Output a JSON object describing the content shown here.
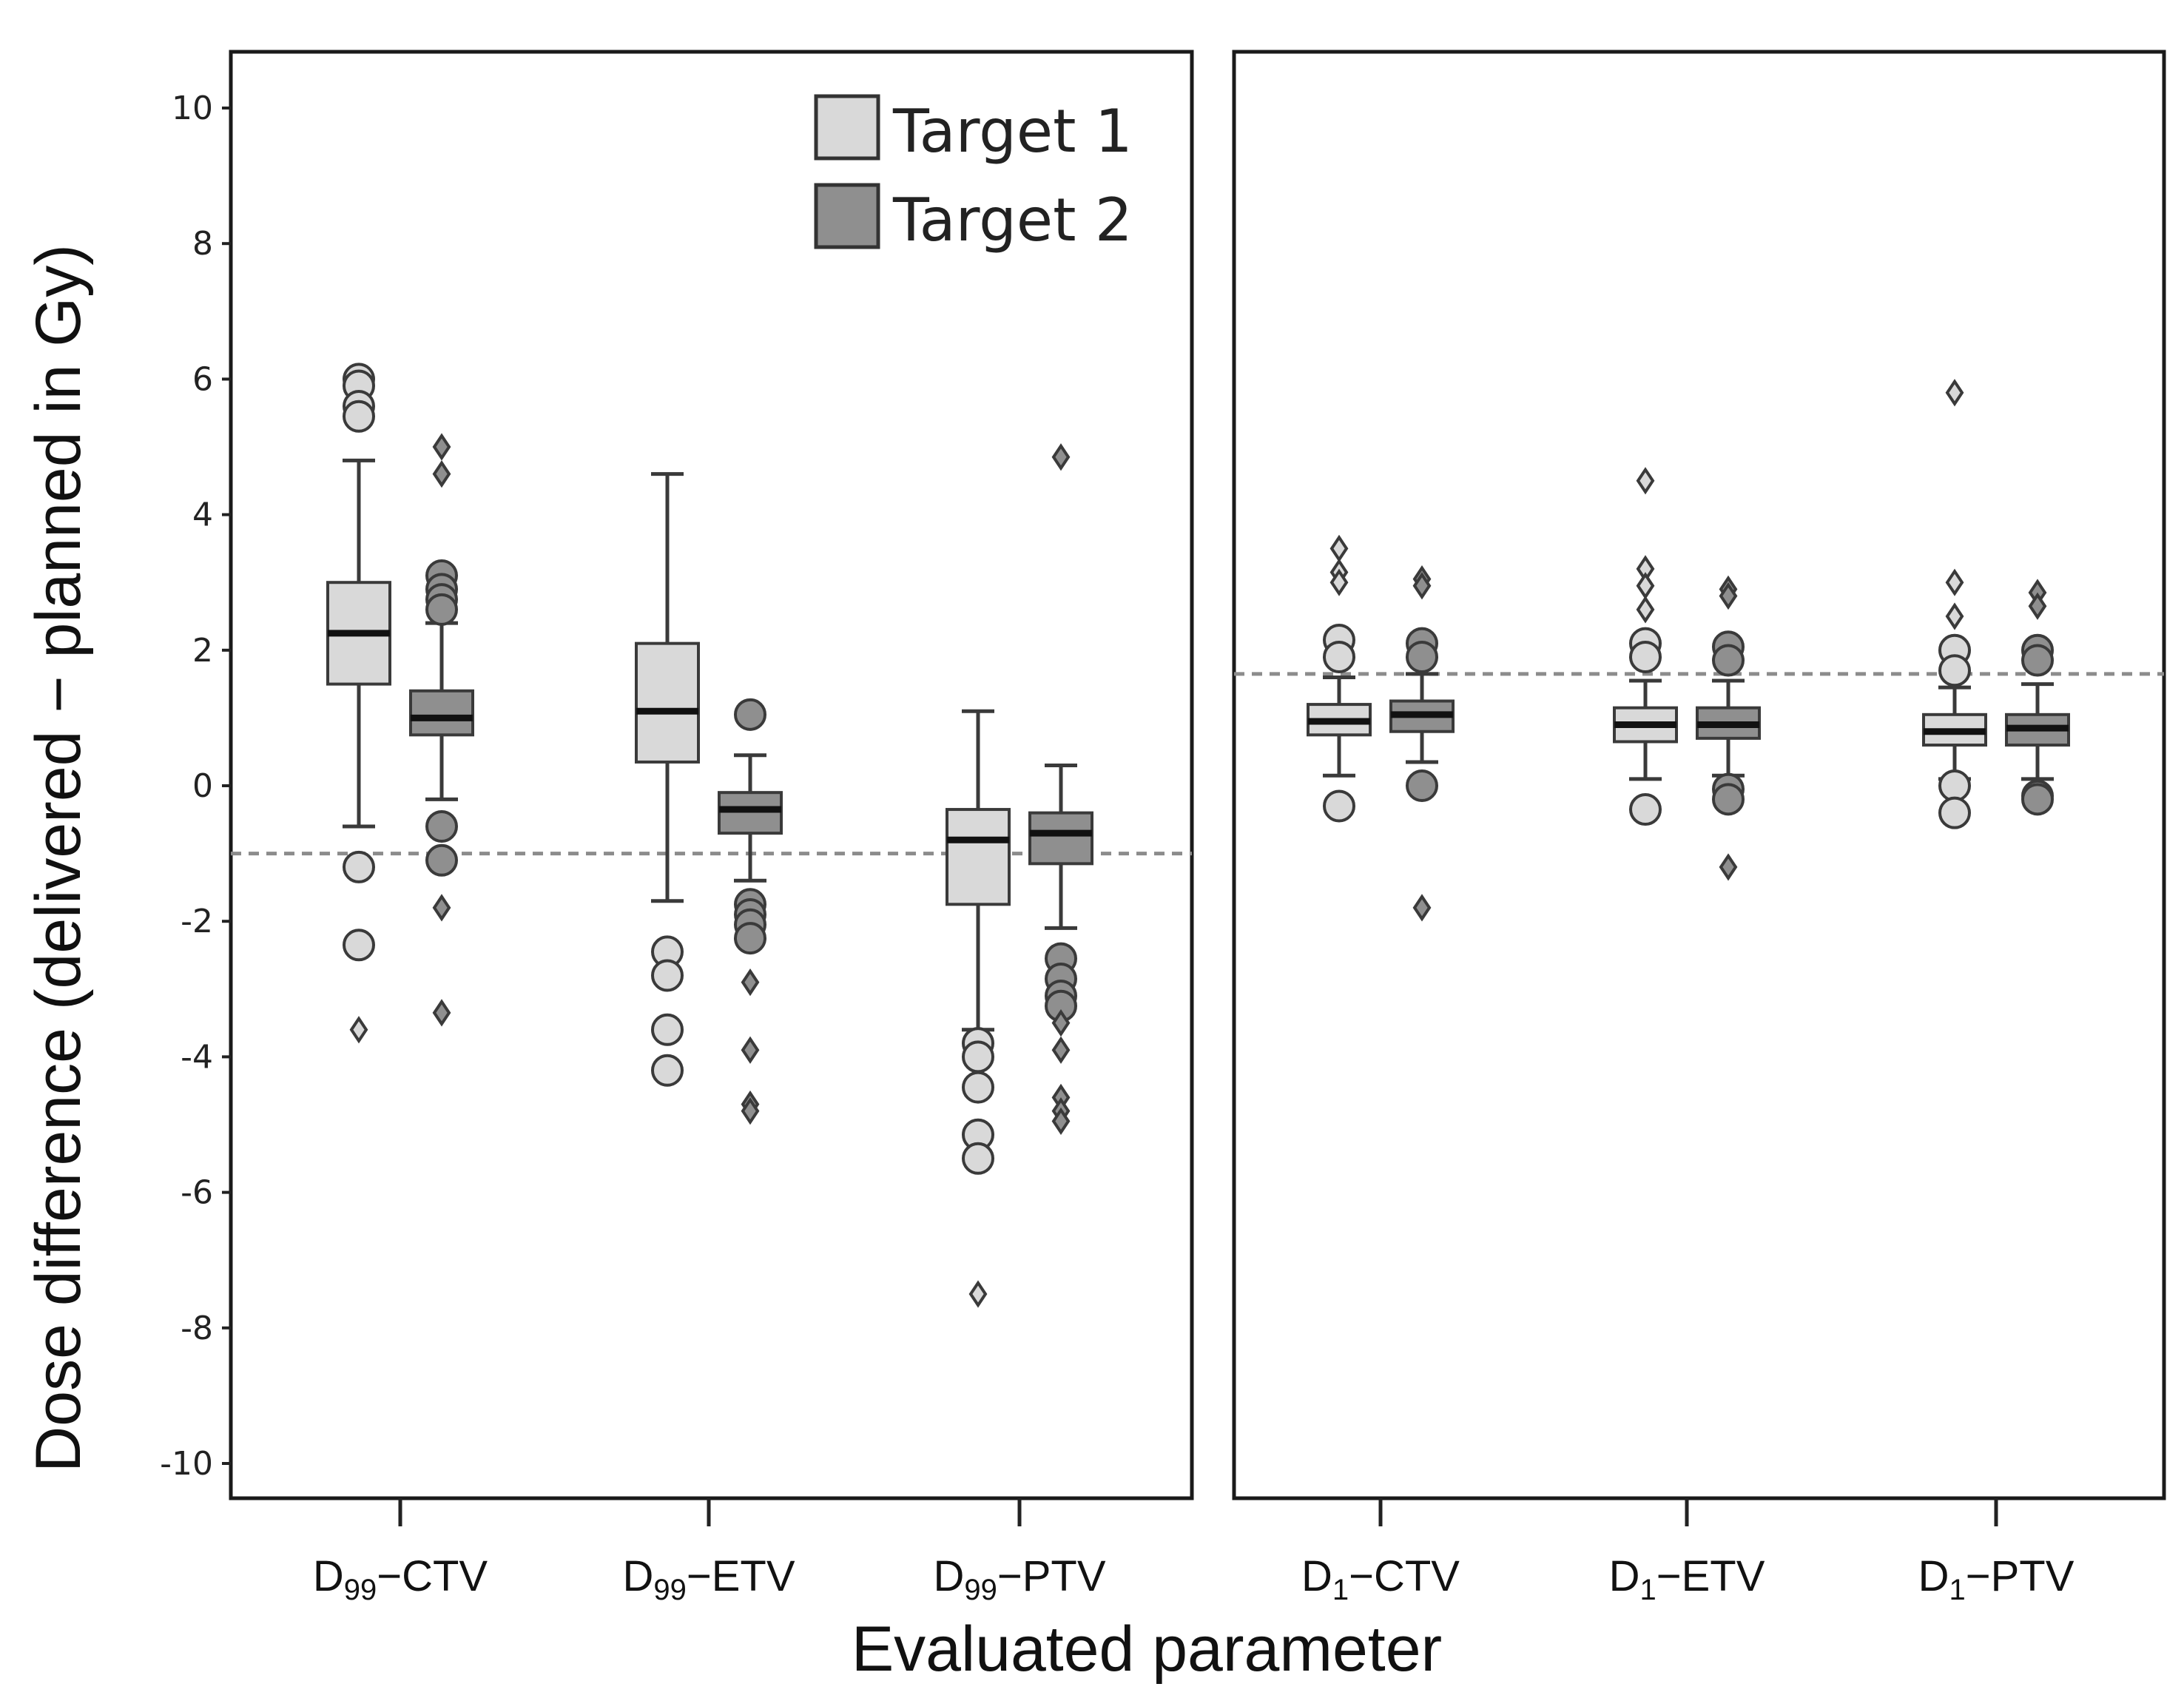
{
  "chart_data": {
    "type": "box",
    "ylabel": "Dose difference (delivered − planned in Gy)",
    "xlabel": "Evaluated parameter",
    "ylim": [
      -10.5,
      10.8
    ],
    "yticks": [
      10,
      8,
      6,
      4,
      2,
      0,
      -2,
      -4,
      -6,
      -8,
      -10
    ],
    "legend": {
      "position": "top-right of left panel",
      "entries": [
        {
          "label": "Target 1",
          "color": "#d9d9d9"
        },
        {
          "label": "Target 2",
          "color": "#8f8f8f"
        }
      ]
    },
    "colors": {
      "target1": "#d9d9d9",
      "target2": "#8f8f8f",
      "stroke": "#3a3a3a",
      "reference": "#8c8c8c"
    },
    "panels": [
      {
        "name": "D99",
        "reference_line": -1.0,
        "categories": [
          {
            "main": "D",
            "sub": "99",
            "suffix": "−CTV",
            "boxes": [
              {
                "series": "Target 1",
                "q1": 1.5,
                "median": 2.25,
                "q3": 3.0,
                "whisker_low": -0.6,
                "whisker_high": 4.8,
                "outliers": [
                  6.0,
                  5.9,
                  5.6,
                  5.45,
                  -1.2,
                  -2.35
                ],
                "extremes": [
                  -3.6
                ]
              },
              {
                "series": "Target 2",
                "q1": 0.75,
                "median": 1.0,
                "q3": 1.4,
                "whisker_low": -0.2,
                "whisker_high": 2.4,
                "outliers": [
                  3.1,
                  2.9,
                  2.75,
                  2.6,
                  -0.6,
                  -1.1
                ],
                "extremes": [
                  5.0,
                  4.6,
                  -1.8,
                  -3.35
                ]
              }
            ]
          },
          {
            "main": "D",
            "sub": "99",
            "suffix": "−ETV",
            "boxes": [
              {
                "series": "Target 1",
                "q1": 0.35,
                "median": 1.1,
                "q3": 2.1,
                "whisker_low": -1.7,
                "whisker_high": 4.6,
                "outliers": [
                  -2.45,
                  -2.8,
                  -3.6,
                  -4.2
                ],
                "extremes": []
              },
              {
                "series": "Target 2",
                "q1": -0.7,
                "median": -0.35,
                "q3": -0.1,
                "whisker_low": -1.4,
                "whisker_high": 0.45,
                "outliers": [
                  1.05,
                  -1.75,
                  -1.9,
                  -2.05,
                  -2.25
                ],
                "extremes": [
                  -2.9,
                  -3.9,
                  -4.7,
                  -4.8
                ]
              }
            ]
          },
          {
            "main": "D",
            "sub": "99",
            "suffix": "−PTV",
            "boxes": [
              {
                "series": "Target 1",
                "q1": -1.75,
                "median": -0.8,
                "q3": -0.35,
                "whisker_low": -3.6,
                "whisker_high": 1.1,
                "outliers": [
                  -3.8,
                  -4.0,
                  -4.45,
                  -5.15,
                  -5.5
                ],
                "extremes": [
                  -7.5
                ]
              },
              {
                "series": "Target 2",
                "q1": -1.15,
                "median": -0.7,
                "q3": -0.4,
                "whisker_low": -2.1,
                "whisker_high": 0.3,
                "outliers": [
                  -2.55,
                  -2.85,
                  -3.1,
                  -3.25
                ],
                "extremes": [
                  4.85,
                  -3.5,
                  -3.9,
                  -4.6,
                  -4.8,
                  -4.95
                ]
              }
            ]
          }
        ]
      },
      {
        "name": "D1",
        "reference_line": 1.65,
        "categories": [
          {
            "main": "D",
            "sub": "1",
            "suffix": "−CTV",
            "boxes": [
              {
                "series": "Target 1",
                "q1": 0.75,
                "median": 0.95,
                "q3": 1.2,
                "whisker_low": 0.15,
                "whisker_high": 1.6,
                "outliers": [
                  2.15,
                  1.9,
                  -0.3
                ],
                "extremes": [
                  3.5,
                  3.15,
                  3.0
                ]
              },
              {
                "series": "Target 2",
                "q1": 0.8,
                "median": 1.05,
                "q3": 1.25,
                "whisker_low": 0.35,
                "whisker_high": 1.65,
                "outliers": [
                  2.1,
                  1.9,
                  0.0
                ],
                "extremes": [
                  3.05,
                  2.95,
                  -1.8
                ]
              }
            ]
          },
          {
            "main": "D",
            "sub": "1",
            "suffix": "−ETV",
            "boxes": [
              {
                "series": "Target 1",
                "q1": 0.65,
                "median": 0.9,
                "q3": 1.15,
                "whisker_low": 0.1,
                "whisker_high": 1.55,
                "outliers": [
                  2.1,
                  1.9,
                  -0.35
                ],
                "extremes": [
                  4.5,
                  3.2,
                  2.95,
                  2.6
                ]
              },
              {
                "series": "Target 2",
                "q1": 0.7,
                "median": 0.9,
                "q3": 1.15,
                "whisker_low": 0.15,
                "whisker_high": 1.55,
                "outliers": [
                  2.05,
                  1.85,
                  -0.05,
                  -0.2
                ],
                "extremes": [
                  2.9,
                  2.8,
                  -1.2
                ]
              }
            ]
          },
          {
            "main": "D",
            "sub": "1",
            "suffix": "−PTV",
            "boxes": [
              {
                "series": "Target 1",
                "q1": 0.6,
                "median": 0.8,
                "q3": 1.05,
                "whisker_low": 0.1,
                "whisker_high": 1.45,
                "outliers": [
                  2.0,
                  1.7,
                  0.0,
                  -0.4
                ],
                "extremes": [
                  5.8,
                  3.0,
                  2.5
                ]
              },
              {
                "series": "Target 2",
                "q1": 0.6,
                "median": 0.85,
                "q3": 1.05,
                "whisker_low": 0.1,
                "whisker_high": 1.5,
                "outliers": [
                  2.0,
                  1.85,
                  -0.15,
                  -0.2
                ],
                "extremes": [
                  2.85,
                  2.65
                ]
              }
            ]
          }
        ]
      }
    ]
  }
}
